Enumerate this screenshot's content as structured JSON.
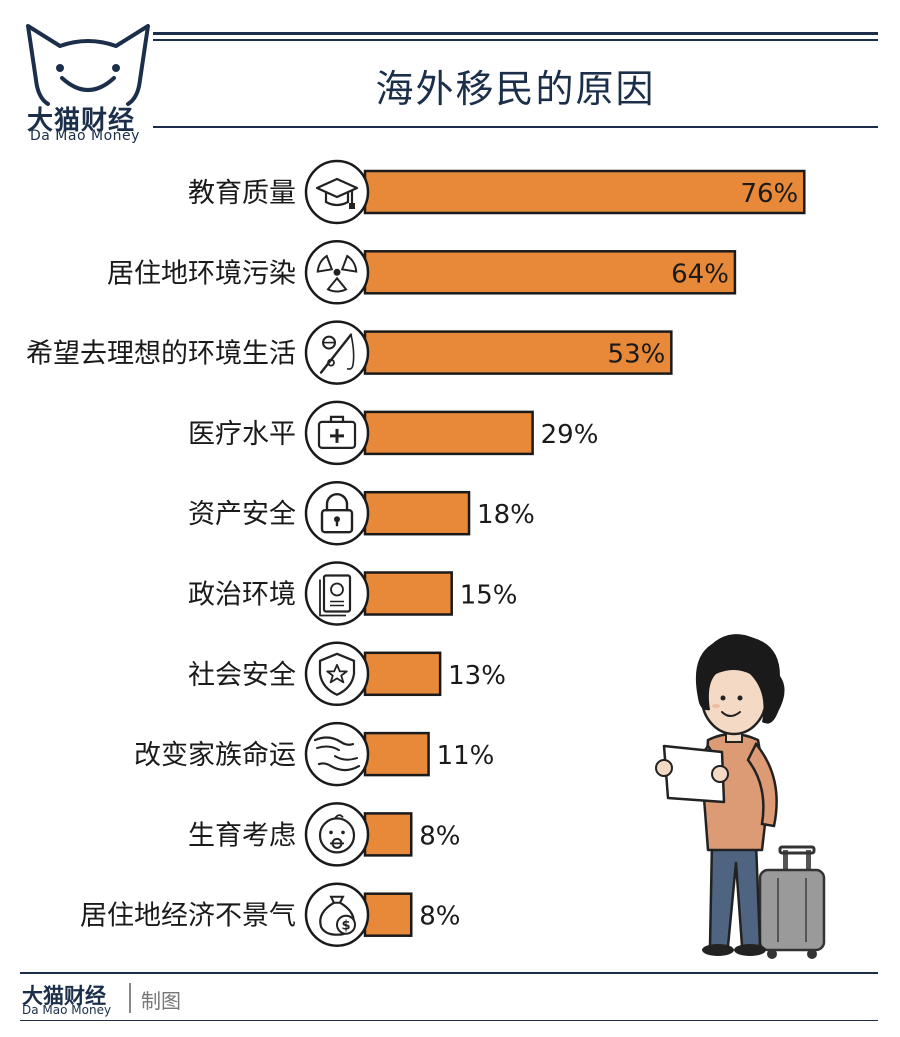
{
  "brand": {
    "name_cn": "大猫财经",
    "name_en": "Da Mao Money"
  },
  "title": "海外移民的原因",
  "footer": {
    "name_cn": "大猫财经",
    "name_en": "Da Mao Money",
    "credit": "制图"
  },
  "colors": {
    "bar": "#e8893a",
    "navy": "#1c2f4a",
    "outline": "#1a1a1a"
  },
  "chart_data": {
    "type": "bar",
    "orientation": "horizontal",
    "categories": [
      "教育质量",
      "居住地环境污染",
      "希望去理想的环境生活",
      "医疗水平",
      "资产安全",
      "政治环境",
      "社会安全",
      "改变家族命运",
      "生育考虑",
      "居住地经济不景气"
    ],
    "values": [
      76,
      64,
      53,
      29,
      18,
      15,
      13,
      11,
      8,
      8
    ],
    "value_labels": [
      "76%",
      "64%",
      "53%",
      "29%",
      "18%",
      "15%",
      "13%",
      "11%",
      "8%",
      "8%"
    ],
    "icons": [
      "graduation-cap-icon",
      "radiation-icon",
      "fishing-rod-icon",
      "medical-kit-icon",
      "padlock-icon",
      "passport-icon",
      "shield-star-icon",
      "helping-hands-icon",
      "baby-icon",
      "money-bag-icon"
    ],
    "xlim": [
      0,
      80
    ]
  }
}
